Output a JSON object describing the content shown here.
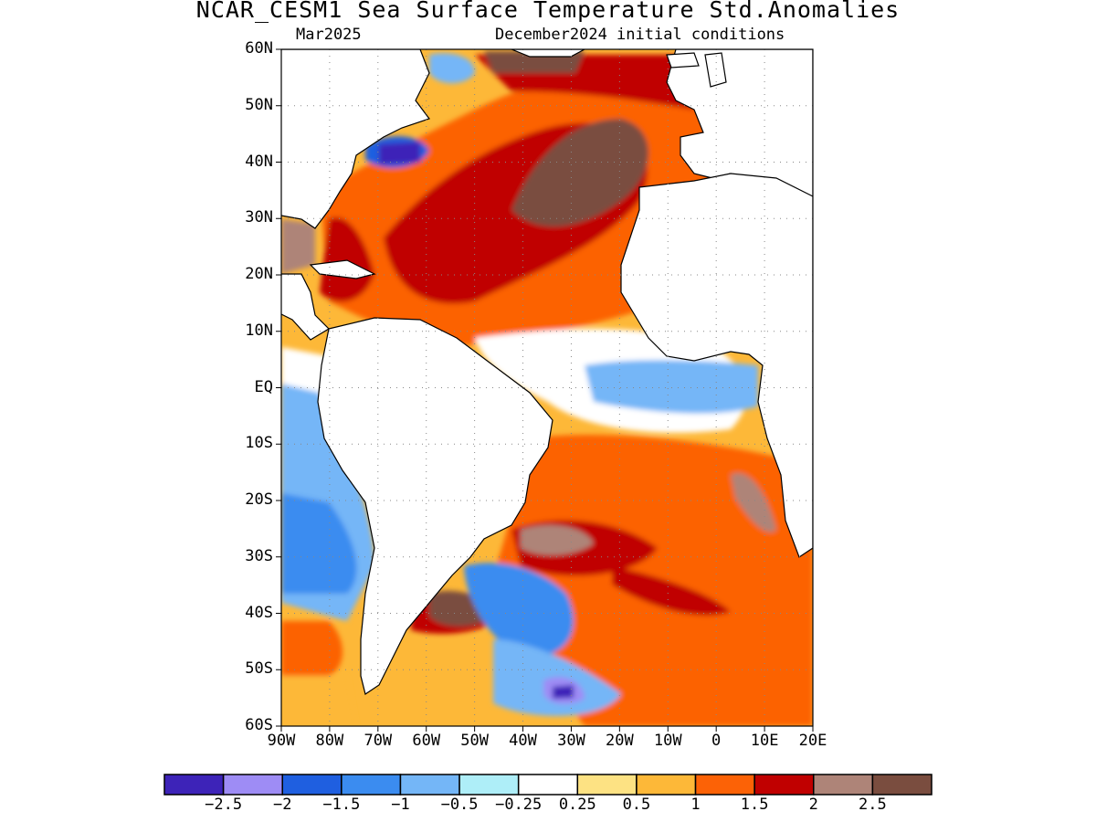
{
  "title": "NCAR_CESM1 Sea Surface Temperature Std.Anomalies",
  "subtitle_left": "Mar2025",
  "subtitle_right": "December2024 initial conditions",
  "map": {
    "lon_range": [
      -90,
      20
    ],
    "lat_range": [
      -60,
      60
    ],
    "lat_ticks": [
      {
        "value": 60,
        "label": "60N"
      },
      {
        "value": 50,
        "label": "50N"
      },
      {
        "value": 40,
        "label": "40N"
      },
      {
        "value": 30,
        "label": "30N"
      },
      {
        "value": 20,
        "label": "20N"
      },
      {
        "value": 10,
        "label": "10N"
      },
      {
        "value": 0,
        "label": "EQ"
      },
      {
        "value": -10,
        "label": "10S"
      },
      {
        "value": -20,
        "label": "20S"
      },
      {
        "value": -30,
        "label": "30S"
      },
      {
        "value": -40,
        "label": "40S"
      },
      {
        "value": -50,
        "label": "50S"
      },
      {
        "value": -60,
        "label": "60S"
      }
    ],
    "lon_ticks": [
      {
        "value": -90,
        "label": "90W"
      },
      {
        "value": -80,
        "label": "80W"
      },
      {
        "value": -70,
        "label": "70W"
      },
      {
        "value": -60,
        "label": "60W"
      },
      {
        "value": -50,
        "label": "50W"
      },
      {
        "value": -40,
        "label": "40W"
      },
      {
        "value": -30,
        "label": "30W"
      },
      {
        "value": -20,
        "label": "20W"
      },
      {
        "value": -10,
        "label": "10W"
      },
      {
        "value": 0,
        "label": "0"
      },
      {
        "value": 10,
        "label": "10E"
      },
      {
        "value": 20,
        "label": "20E"
      }
    ],
    "grid": "dotted"
  },
  "colorbar": {
    "colors": [
      "#3d23b8",
      "#9e8cf5",
      "#1f5fe0",
      "#3b8cf0",
      "#74b6f7",
      "#aeeef8",
      "#ffffff",
      "#fde283",
      "#fdb838",
      "#fc6206",
      "#c00000",
      "#ae8478",
      "#7a4d3f"
    ],
    "labels": [
      "−2.5",
      "−2",
      "−1.5",
      "−1",
      "−0.5",
      "−0.25",
      "0.25",
      "0.5",
      "1",
      "1.5",
      "2",
      "2.5"
    ]
  }
}
